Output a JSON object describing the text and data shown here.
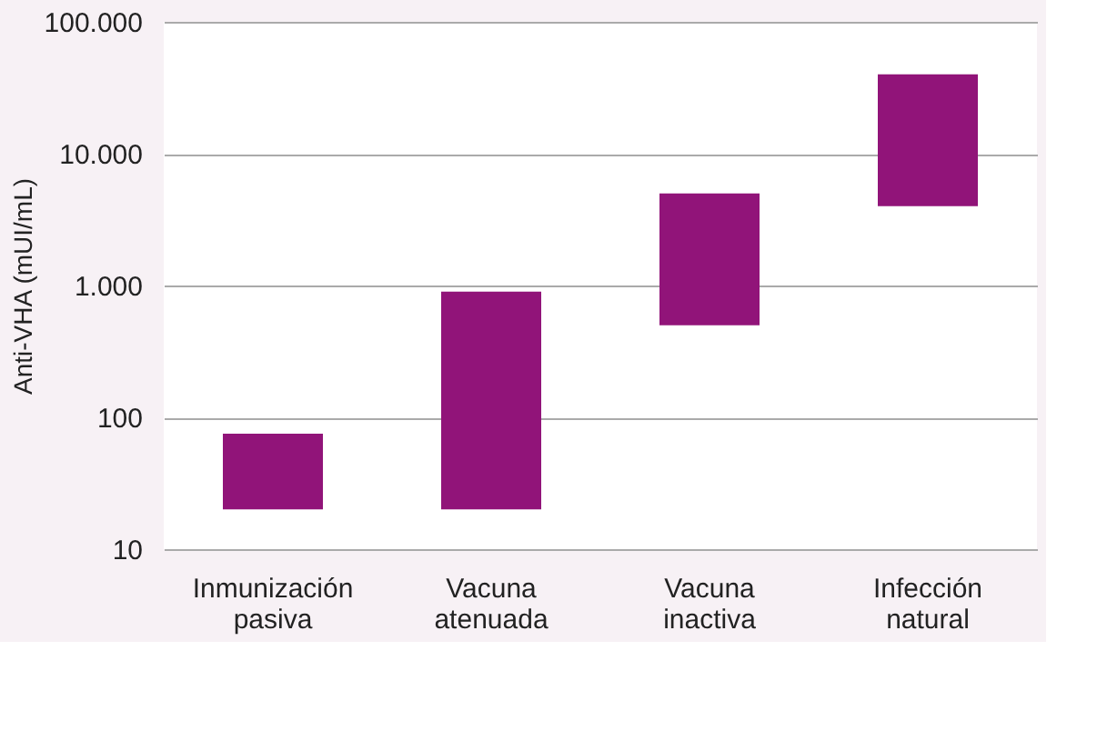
{
  "chart_data": {
    "type": "bar",
    "ylabel": "Anti-VHA (mUI/mL)",
    "categories": [
      "Inmunización pasiva",
      "Vacuna atenuada",
      "Vacuna inactiva",
      "Infección natural"
    ],
    "base": [
      20,
      20,
      500,
      4000
    ],
    "values": [
      55,
      880,
      4500,
      36000
    ],
    "color": "#911479",
    "log": true,
    "ylim": [
      10,
      100000
    ],
    "yticks": [
      10,
      100,
      {
        "value": 1000,
        "label": "1.000"
      },
      {
        "value": 10000,
        "label": "10.000"
      },
      {
        "value": 100000,
        "label": "100.000"
      }
    ],
    "grid": "y"
  }
}
